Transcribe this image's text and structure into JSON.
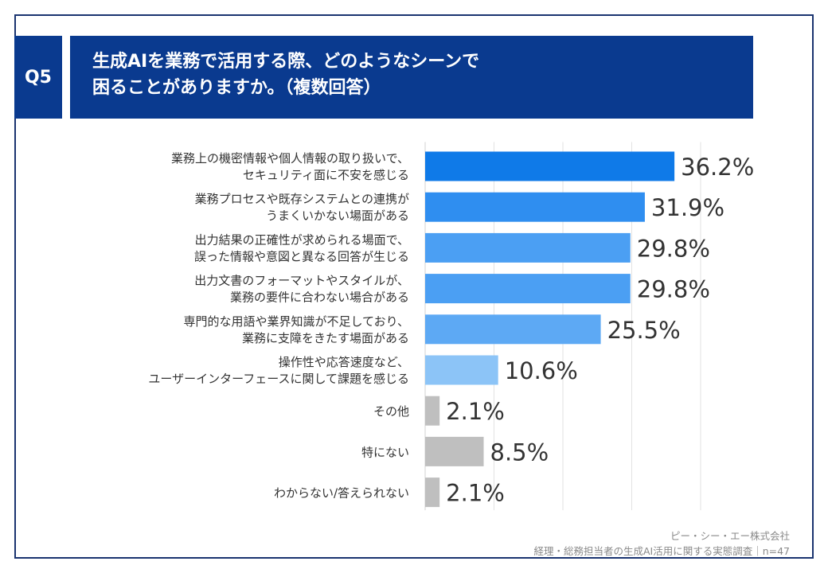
{
  "question": {
    "label": "Q5",
    "title_line1": "生成AIを業務で活用する際、どのようなシーンで",
    "title_line2": "困ることがありますか。（複数回答）"
  },
  "footer": {
    "company": "ピー・シー・エー株式会社",
    "survey": "経理・総務担当者の生成AI活用に関する実態調査｜n=47"
  },
  "chart_data": {
    "type": "bar",
    "orientation": "horizontal",
    "unit": "%",
    "categories": [
      [
        "業務上の機密情報や個人情報の取り扱いで、",
        "セキュリティ面に不安を感じる"
      ],
      [
        "業務プロセスや既存システムとの連携が",
        "うまくいかない場面がある"
      ],
      [
        "出力結果の正確性が求められる場面で、",
        "誤った情報や意図と異なる回答が生じる"
      ],
      [
        "出力文書のフォーマットやスタイルが、",
        "業務の要件に合わない場合がある"
      ],
      [
        "専門的な用語や業界知識が不足しており、",
        "業務に支障をきたす場面がある"
      ],
      [
        "操作性や応答速度など、",
        "ユーザーインターフェースに関して課題を感じる"
      ],
      [
        "その他"
      ],
      [
        "特にない"
      ],
      [
        "わからない/答えられない"
      ]
    ],
    "values": [
      36.2,
      31.9,
      29.8,
      29.8,
      25.5,
      10.6,
      2.1,
      8.5,
      2.1
    ],
    "value_labels": [
      "36.2%",
      "31.9%",
      "29.8%",
      "29.8%",
      "25.5%",
      "10.6%",
      "2.1%",
      "8.5%",
      "2.1%"
    ],
    "colors": [
      "#0f7ae8",
      "#2f8ef0",
      "#4b9ff3",
      "#4b9ff3",
      "#5da9f4",
      "#8cc4f7",
      "#bfbfbf",
      "#bfbfbf",
      "#bfbfbf"
    ],
    "xlim": [
      0,
      40
    ],
    "grid": true
  }
}
